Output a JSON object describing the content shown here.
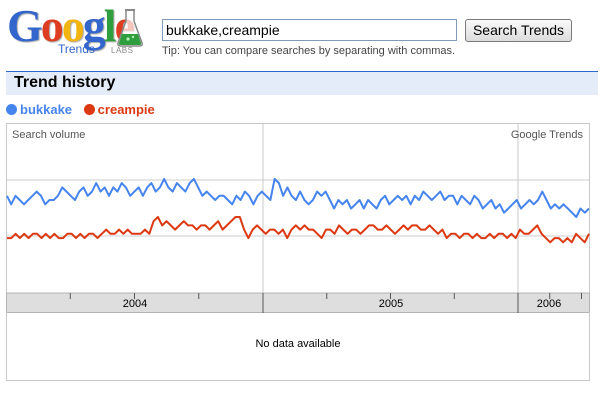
{
  "logo": {
    "letters": [
      {
        "char": "G",
        "color": "#3366cc"
      },
      {
        "char": "o",
        "color": "#dd3e22"
      },
      {
        "char": "o",
        "color": "#f2b50f"
      },
      {
        "char": "g",
        "color": "#3366cc"
      },
      {
        "char": "l",
        "color": "#2e9e3e"
      },
      {
        "char": "e",
        "color": "#dd3e22"
      }
    ],
    "product": "Trends",
    "badge": "LABS"
  },
  "search": {
    "value": "bukkake,creampie",
    "button_label": "Search Trends",
    "tip": "Tip: You can compare searches by separating with commas."
  },
  "section": {
    "title": "Trend history"
  },
  "legend": [
    {
      "label": "bukkake",
      "color": "#4684ee"
    },
    {
      "label": "creampie",
      "color": "#dc3912"
    }
  ],
  "panel": {
    "message": "No data available"
  },
  "chart_data": {
    "type": "line",
    "title": "",
    "corner_labels": {
      "left": "Search volume",
      "right": "Google Trends"
    },
    "x_period_labels": [
      "2004",
      "2005",
      "2006"
    ],
    "ylim": [
      0,
      4
    ],
    "grid": true,
    "legend_position": "top-left",
    "series": [
      {
        "name": "bukkake",
        "color": "#4684ee",
        "values": [
          2.3,
          2.1,
          2.3,
          2.2,
          2.1,
          2.2,
          2.3,
          2.4,
          2.3,
          2.1,
          2.2,
          2.2,
          2.3,
          2.5,
          2.4,
          2.3,
          2.2,
          2.4,
          2.5,
          2.3,
          2.4,
          2.6,
          2.4,
          2.5,
          2.3,
          2.5,
          2.4,
          2.6,
          2.5,
          2.3,
          2.4,
          2.5,
          2.3,
          2.5,
          2.6,
          2.4,
          2.5,
          2.7,
          2.5,
          2.4,
          2.6,
          2.5,
          2.4,
          2.6,
          2.7,
          2.5,
          2.3,
          2.4,
          2.3,
          2.2,
          2.3,
          2.3,
          2.2,
          2.1,
          2.3,
          2.2,
          2.4,
          2.3,
          2.1,
          2.3,
          2.4,
          2.3,
          2.2,
          2.7,
          2.6,
          2.3,
          2.5,
          2.3,
          2.2,
          2.4,
          2.2,
          2.1,
          2.2,
          2.4,
          2.3,
          2.4,
          2.2,
          2.0,
          2.2,
          2.1,
          2.2,
          2.0,
          2.1,
          2.2,
          2.0,
          2.2,
          2.1,
          2.0,
          2.2,
          2.3,
          2.1,
          2.2,
          2.3,
          2.2,
          2.3,
          2.1,
          2.3,
          2.2,
          2.4,
          2.3,
          2.2,
          2.3,
          2.4,
          2.2,
          2.3,
          2.3,
          2.1,
          2.3,
          2.2,
          2.1,
          2.3,
          2.2,
          2.0,
          2.1,
          2.2,
          2.0,
          2.1,
          1.9,
          2.0,
          2.1,
          2.2,
          2.0,
          2.1,
          2.2,
          2.1,
          2.2,
          2.4,
          2.2,
          2.0,
          2.1,
          2.0,
          2.1,
          2.0,
          1.9,
          1.8,
          2.0,
          1.9,
          2.0
        ]
      },
      {
        "name": "creampie",
        "color": "#dc3912",
        "values": [
          1.3,
          1.3,
          1.4,
          1.3,
          1.4,
          1.3,
          1.4,
          1.4,
          1.3,
          1.4,
          1.3,
          1.4,
          1.3,
          1.3,
          1.4,
          1.4,
          1.3,
          1.4,
          1.3,
          1.4,
          1.4,
          1.3,
          1.4,
          1.5,
          1.4,
          1.4,
          1.5,
          1.4,
          1.5,
          1.4,
          1.4,
          1.4,
          1.5,
          1.4,
          1.7,
          1.8,
          1.6,
          1.7,
          1.6,
          1.5,
          1.6,
          1.7,
          1.6,
          1.6,
          1.5,
          1.6,
          1.6,
          1.5,
          1.6,
          1.7,
          1.5,
          1.6,
          1.7,
          1.8,
          1.8,
          1.5,
          1.3,
          1.5,
          1.6,
          1.5,
          1.4,
          1.5,
          1.5,
          1.4,
          1.5,
          1.3,
          1.5,
          1.6,
          1.5,
          1.6,
          1.5,
          1.5,
          1.4,
          1.3,
          1.5,
          1.5,
          1.4,
          1.6,
          1.5,
          1.4,
          1.5,
          1.5,
          1.4,
          1.5,
          1.6,
          1.6,
          1.5,
          1.5,
          1.6,
          1.5,
          1.4,
          1.5,
          1.6,
          1.5,
          1.6,
          1.6,
          1.5,
          1.5,
          1.6,
          1.5,
          1.4,
          1.5,
          1.3,
          1.4,
          1.4,
          1.3,
          1.4,
          1.4,
          1.3,
          1.4,
          1.3,
          1.3,
          1.4,
          1.3,
          1.4,
          1.4,
          1.3,
          1.4,
          1.3,
          1.5,
          1.4,
          1.4,
          1.5,
          1.6,
          1.4,
          1.3,
          1.2,
          1.3,
          1.3,
          1.2,
          1.3,
          1.2,
          1.4,
          1.3,
          1.2,
          1.4
        ]
      }
    ]
  }
}
